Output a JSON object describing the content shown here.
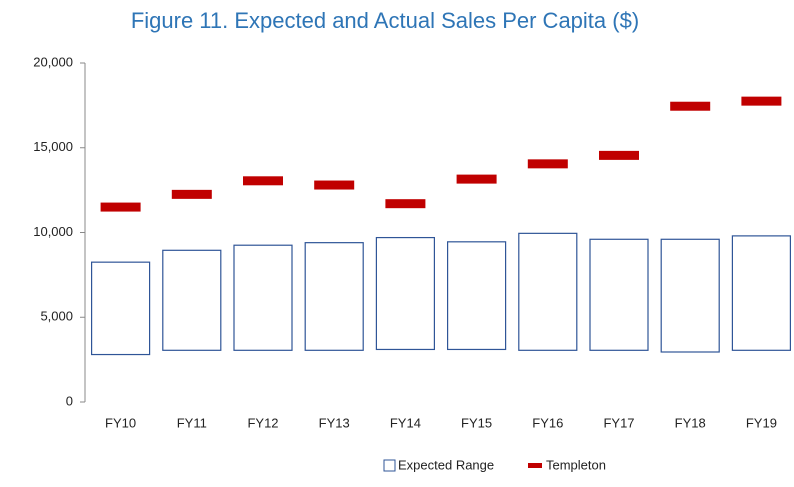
{
  "chart_data": {
    "type": "range-marker",
    "title": "Figure 11.  Expected and Actual Sales Per Capita ($)",
    "categories": [
      "FY10",
      "FY11",
      "FY12",
      "FY13",
      "FY14",
      "FY15",
      "FY16",
      "FY17",
      "FY18",
      "FY19"
    ],
    "series": [
      {
        "name": "Expected Range",
        "color": "#2f5597",
        "low": [
          2800,
          3050,
          3050,
          3050,
          3100,
          3100,
          3050,
          3050,
          2950,
          3050
        ],
        "high": [
          8250,
          8950,
          9250,
          9400,
          9700,
          9450,
          9950,
          9600,
          9600,
          9800
        ]
      },
      {
        "name": "Templeton",
        "color": "#c00000",
        "values": [
          11500,
          12250,
          13050,
          12800,
          11700,
          13150,
          14050,
          14550,
          17450,
          17750
        ]
      }
    ],
    "ylim": [
      0,
      20000
    ],
    "yticks": [
      0,
      {
        "value": 5000,
        "label": "5,000"
      },
      {
        "value": 10000,
        "label": "10,000"
      },
      {
        "value": 15000,
        "label": "15,000"
      },
      {
        "value": 20000,
        "label": "20,000"
      }
    ],
    "legend": "bottom"
  }
}
